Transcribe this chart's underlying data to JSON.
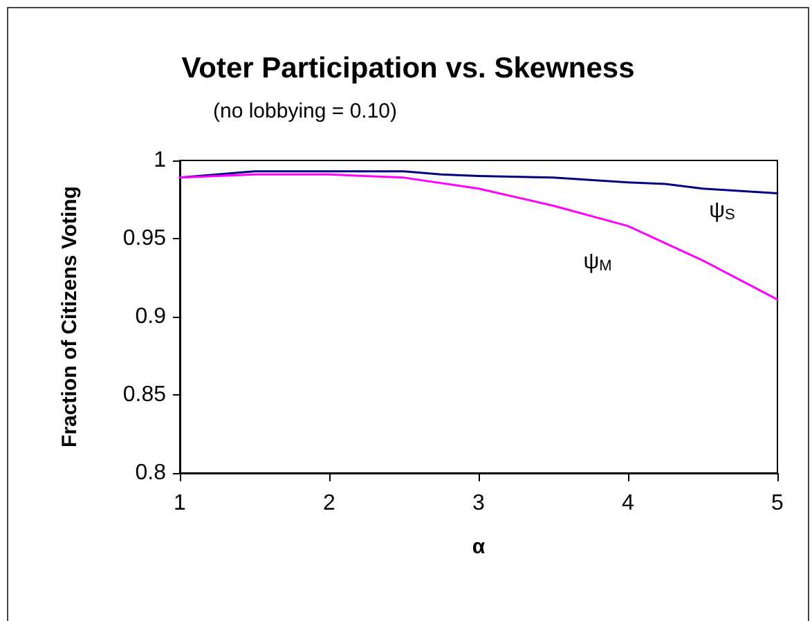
{
  "chart_data": {
    "type": "line",
    "title": "Voter Participation vs. Skewness",
    "subtitle": "(no lobbying = 0.10)",
    "xlabel": "α",
    "ylabel": "Fraction of Citizens Voting",
    "series": [
      {
        "name": "ψ$_{S}$",
        "color": "#000080",
        "x": [
          1,
          1.25,
          1.5,
          2,
          2.5,
          2.75,
          3,
          3.5,
          4,
          4.25,
          4.5,
          5
        ],
        "values": [
          0.989,
          0.991,
          0.993,
          0.993,
          0.993,
          0.991,
          0.99,
          0.989,
          0.986,
          0.985,
          0.982,
          0.979
        ]
      },
      {
        "name": "ψ$_{M}$",
        "color": "#ff00ff",
        "x": [
          1,
          1.5,
          2,
          2.5,
          3,
          3.5,
          4,
          4.5,
          5
        ],
        "values": [
          0.989,
          0.991,
          0.991,
          0.989,
          0.982,
          0.971,
          0.958,
          0.936,
          0.911
        ]
      }
    ],
    "xlim": [
      1,
      5
    ],
    "xticks": [
      1,
      2,
      3,
      4,
      5
    ],
    "ylim": [
      0.8,
      1
    ],
    "yticks": [
      0.8,
      0.85,
      0.9,
      0.95,
      1
    ],
    "grid": false,
    "legend": false,
    "marker": "none",
    "line_style": "solid"
  }
}
